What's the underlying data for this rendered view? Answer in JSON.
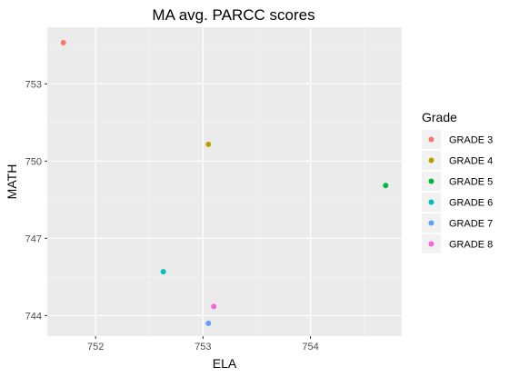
{
  "chart_data": {
    "type": "scatter",
    "title": "MA avg. PARCC scores",
    "xlabel": "ELA",
    "ylabel": "MATH",
    "xlim": [
      751.55,
      754.85
    ],
    "ylim": [
      743.2,
      755.2
    ],
    "x_ticks": [
      752,
      753,
      754
    ],
    "y_ticks": [
      744,
      747,
      750,
      753
    ],
    "x_tick_labels": [
      "752",
      "753",
      "754"
    ],
    "y_tick_labels": [
      "744",
      "747",
      "750",
      "753"
    ],
    "grid": true,
    "legend": {
      "title": "Grade",
      "placement": "right"
    },
    "series": [
      {
        "name": "GRADE 3",
        "color": "#F8766D",
        "x": [
          751.7
        ],
        "y": [
          754.6
        ]
      },
      {
        "name": "GRADE 4",
        "color": "#B79F00",
        "x": [
          753.05
        ],
        "y": [
          750.65
        ]
      },
      {
        "name": "GRADE 5",
        "color": "#00BA38",
        "x": [
          754.7
        ],
        "y": [
          749.05
        ]
      },
      {
        "name": "GRADE 6",
        "color": "#00BFC4",
        "x": [
          752.63
        ],
        "y": [
          745.7
        ]
      },
      {
        "name": "GRADE 7",
        "color": "#619CFF",
        "x": [
          753.05
        ],
        "y": [
          743.7
        ]
      },
      {
        "name": "GRADE 8",
        "color": "#F564E3",
        "x": [
          753.1
        ],
        "y": [
          744.35
        ]
      }
    ]
  }
}
